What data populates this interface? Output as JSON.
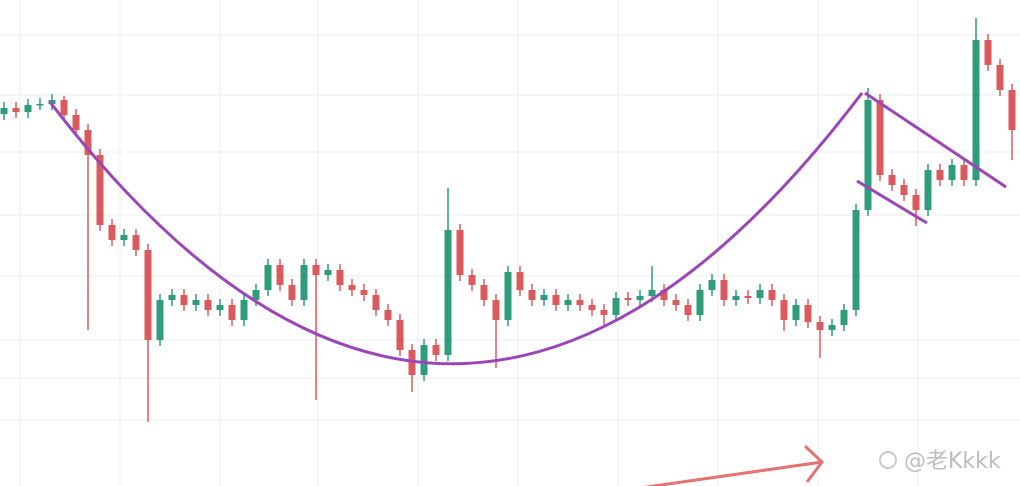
{
  "chart_data": {
    "type": "candlestick",
    "watermark": "@老Kkkk",
    "up_color": "#2f9c7c",
    "down_color": "#db5a5e",
    "ylim": [
      0,
      486
    ],
    "ohlc": [
      [
        372,
        384,
        366,
        378
      ],
      [
        378,
        384,
        368,
        374
      ],
      [
        374,
        387,
        368,
        381
      ],
      [
        381,
        388,
        376,
        382
      ],
      [
        382,
        392,
        376,
        386
      ],
      [
        386,
        390,
        365,
        371
      ],
      [
        371,
        377,
        350,
        356
      ],
      [
        356,
        362,
        156,
        331
      ],
      [
        331,
        337,
        255,
        261
      ],
      [
        261,
        267,
        240,
        246
      ],
      [
        246,
        257,
        240,
        251
      ],
      [
        251,
        257,
        230,
        236
      ],
      [
        236,
        242,
        64,
        146
      ],
      [
        146,
        192,
        140,
        186
      ],
      [
        186,
        197,
        180,
        191
      ],
      [
        191,
        197,
        175,
        181
      ],
      [
        181,
        192,
        175,
        186
      ],
      [
        186,
        192,
        170,
        176
      ],
      [
        176,
        187,
        170,
        181
      ],
      [
        181,
        187,
        160,
        166
      ],
      [
        166,
        192,
        160,
        186
      ],
      [
        186,
        202,
        180,
        196
      ],
      [
        196,
        227,
        190,
        221
      ],
      [
        221,
        227,
        195,
        201
      ],
      [
        201,
        207,
        180,
        186
      ],
      [
        186,
        227,
        180,
        221
      ],
      [
        221,
        227,
        86,
        211
      ],
      [
        211,
        222,
        205,
        216
      ],
      [
        216,
        222,
        195,
        201
      ],
      [
        201,
        207,
        190,
        196
      ],
      [
        196,
        202,
        185,
        191
      ],
      [
        191,
        197,
        170,
        176
      ],
      [
        176,
        182,
        160,
        166
      ],
      [
        166,
        172,
        130,
        136
      ],
      [
        136,
        142,
        94,
        111
      ],
      [
        111,
        147,
        105,
        141
      ],
      [
        141,
        147,
        125,
        131
      ],
      [
        131,
        298,
        125,
        256
      ],
      [
        256,
        262,
        205,
        211
      ],
      [
        211,
        217,
        195,
        201
      ],
      [
        201,
        207,
        180,
        186
      ],
      [
        186,
        192,
        118,
        166
      ],
      [
        166,
        220,
        160,
        214
      ],
      [
        214,
        220,
        190,
        196
      ],
      [
        196,
        202,
        180,
        186
      ],
      [
        186,
        197,
        180,
        191
      ],
      [
        191,
        197,
        175,
        181
      ],
      [
        181,
        192,
        175,
        186
      ],
      [
        186,
        192,
        175,
        181
      ],
      [
        181,
        187,
        170,
        176
      ],
      [
        176,
        182,
        160,
        171
      ],
      [
        171,
        194,
        165,
        188
      ],
      [
        188,
        194,
        180,
        186
      ],
      [
        186,
        196,
        180,
        190
      ],
      [
        190,
        220,
        184,
        196
      ],
      [
        196,
        202,
        180,
        186
      ],
      [
        186,
        192,
        175,
        181
      ],
      [
        181,
        187,
        165,
        171
      ],
      [
        171,
        202,
        165,
        196
      ],
      [
        196,
        212,
        190,
        206
      ],
      [
        206,
        212,
        180,
        186
      ],
      [
        186,
        196,
        180,
        190
      ],
      [
        190,
        196,
        182,
        188
      ],
      [
        188,
        202,
        182,
        196
      ],
      [
        196,
        202,
        180,
        186
      ],
      [
        186,
        192,
        155,
        166
      ],
      [
        166,
        187,
        160,
        181
      ],
      [
        181,
        187,
        158,
        164
      ],
      [
        164,
        170,
        128,
        156
      ],
      [
        156,
        167,
        150,
        161
      ],
      [
        161,
        182,
        155,
        176
      ],
      [
        176,
        282,
        170,
        276
      ],
      [
        276,
        398,
        270,
        386
      ],
      [
        386,
        392,
        305,
        311
      ],
      [
        311,
        317,
        295,
        301
      ],
      [
        301,
        307,
        285,
        291
      ],
      [
        291,
        297,
        260,
        276
      ],
      [
        276,
        322,
        270,
        316
      ],
      [
        316,
        322,
        300,
        306
      ],
      [
        306,
        327,
        300,
        321
      ],
      [
        321,
        327,
        300,
        306
      ],
      [
        306,
        468,
        300,
        446
      ],
      [
        446,
        452,
        415,
        421
      ],
      [
        421,
        427,
        390,
        396
      ],
      [
        396,
        402,
        326,
        356
      ]
    ]
  }
}
